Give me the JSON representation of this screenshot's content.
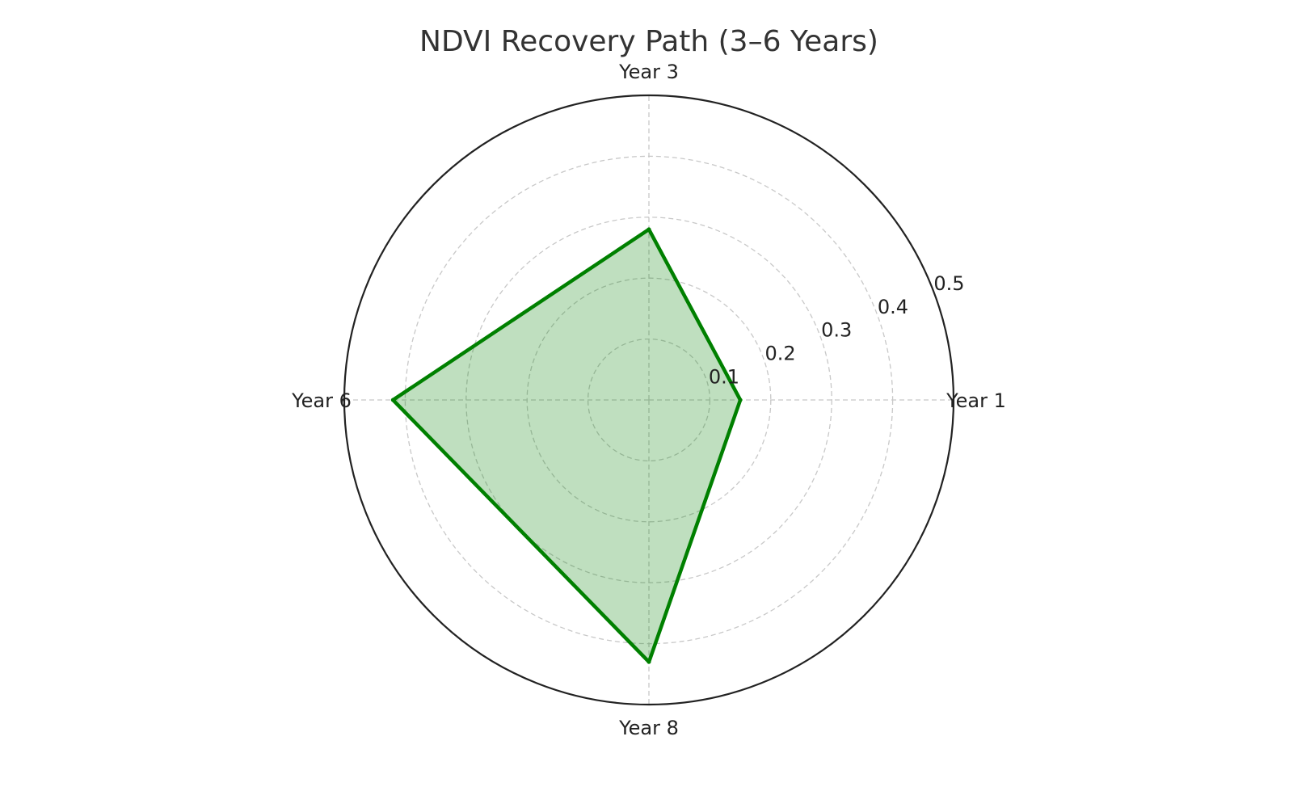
{
  "chart_data": {
    "type": "radar",
    "title": "NDVI Recovery Path (3–6 Years)",
    "categories": [
      "Year 1",
      "Year 3",
      "Year 6",
      "Year 8"
    ],
    "series": [
      {
        "values": [
          0.15,
          0.28,
          0.42,
          0.43
        ]
      }
    ],
    "rlim": [
      0,
      0.5
    ],
    "rticks": [
      0.1,
      0.2,
      0.3,
      0.4,
      0.5
    ],
    "rtick_labels": [
      "0.1",
      "0.2",
      "0.3",
      "0.4",
      "0.5"
    ],
    "grid": true,
    "colors": {
      "line": "#008000",
      "fill": "#008000",
      "grid": "#c8c8c8",
      "outer": "#222222"
    }
  }
}
